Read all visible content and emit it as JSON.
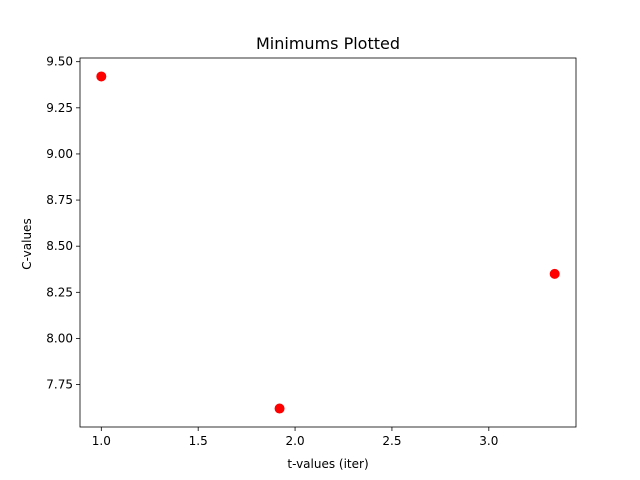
{
  "chart_data": {
    "type": "scatter",
    "title": "Minimums Plotted",
    "xlabel": "t-values (iter)",
    "ylabel": "C-values",
    "xlim": [
      0.89,
      3.45
    ],
    "ylim": [
      7.52,
      9.52
    ],
    "xticks": [
      1.0,
      1.5,
      2.0,
      2.5,
      3.0
    ],
    "xtick_labels": [
      "1.0",
      "1.5",
      "2.0",
      "2.5",
      "3.0"
    ],
    "yticks": [
      7.75,
      8.0,
      8.25,
      8.5,
      8.75,
      9.0,
      9.25,
      9.5
    ],
    "ytick_labels": [
      "7.75",
      "8.00",
      "8.25",
      "8.50",
      "8.75",
      "9.00",
      "9.25",
      "9.50"
    ],
    "grid": false,
    "series": [
      {
        "color": "#ff0000",
        "marker": "circle",
        "points": [
          {
            "x": 1.0,
            "y": 9.42
          },
          {
            "x": 1.92,
            "y": 7.62
          },
          {
            "x": 3.34,
            "y": 8.35
          }
        ]
      }
    ]
  }
}
